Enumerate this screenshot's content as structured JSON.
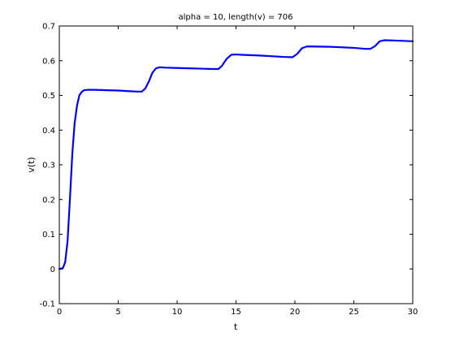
{
  "chart_data": {
    "type": "line",
    "title": "alpha = 10, length(v) = 706",
    "xlabel": "t",
    "ylabel": "v(t)",
    "xlim": [
      0,
      30
    ],
    "ylim": [
      -0.1,
      0.7
    ],
    "xticks": [
      0,
      5,
      10,
      15,
      20,
      25,
      30
    ],
    "xtick_labels": [
      "0",
      "5",
      "10",
      "15",
      "20",
      "25",
      "30"
    ],
    "yticks": [
      -0.1,
      0,
      0.1,
      0.2,
      0.3,
      0.4,
      0.5,
      0.6,
      0.7
    ],
    "ytick_labels": [
      "-0.1",
      "0",
      "0.1",
      "0.2",
      "0.3",
      "0.4",
      "0.5",
      "0.6",
      "0.7"
    ],
    "grid": false,
    "legend": "none",
    "series": [
      {
        "color": "#0000ff",
        "x": [
          0,
          0.3,
          0.5,
          0.7,
          0.9,
          1.1,
          1.3,
          1.5,
          1.7,
          1.9,
          2.1,
          2.4,
          3,
          4,
          5,
          6,
          6.6,
          7,
          7.3,
          7.6,
          7.9,
          8.2,
          8.5,
          9,
          10,
          11,
          12,
          13,
          13.5,
          13.8,
          14.2,
          14.6,
          15,
          15.5,
          17,
          19,
          19.8,
          20.2,
          20.6,
          21,
          21.5,
          23,
          25,
          26,
          26.4,
          26.8,
          27.2,
          27.6,
          28.5,
          30
        ],
        "y": [
          0.0,
          0.002,
          0.02,
          0.08,
          0.2,
          0.33,
          0.42,
          0.47,
          0.5,
          0.51,
          0.515,
          0.516,
          0.516,
          0.515,
          0.514,
          0.512,
          0.511,
          0.511,
          0.52,
          0.54,
          0.565,
          0.578,
          0.581,
          0.58,
          0.579,
          0.578,
          0.577,
          0.576,
          0.576,
          0.585,
          0.605,
          0.617,
          0.618,
          0.617,
          0.615,
          0.611,
          0.61,
          0.62,
          0.636,
          0.641,
          0.641,
          0.64,
          0.637,
          0.634,
          0.634,
          0.642,
          0.656,
          0.659,
          0.658,
          0.656
        ]
      }
    ]
  }
}
